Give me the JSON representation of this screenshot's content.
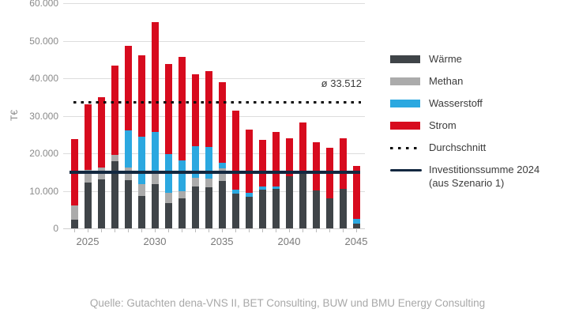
{
  "chart_data": {
    "type": "bar",
    "stacked": true,
    "title": "",
    "ylabel": "T€",
    "ylim": [
      0,
      60000
    ],
    "grid": true,
    "legend_position": "right",
    "ytick_values": [
      0,
      10000,
      20000,
      30000,
      40000,
      50000,
      60000
    ],
    "ytick_labels": [
      "0",
      "10.000",
      "20.000",
      "30.000",
      "40.000",
      "50.000",
      "60.000"
    ],
    "xtick_years": [
      2025,
      2030,
      2035,
      2040,
      2045
    ],
    "xtick_labels": [
      "2025",
      "2030",
      "2035",
      "2040",
      "2045"
    ],
    "years": [
      2024,
      2025,
      2026,
      2027,
      2028,
      2029,
      2030,
      2031,
      2032,
      2033,
      2034,
      2035,
      2036,
      2037,
      2038,
      2039,
      2040,
      2041,
      2042,
      2043,
      2044,
      2045
    ],
    "series": [
      {
        "name": "Wärme",
        "color": "#3f4448",
        "values": [
          2300,
          12200,
          13100,
          18000,
          12800,
          8600,
          11700,
          6800,
          7900,
          11200,
          11000,
          12600,
          9300,
          8500,
          10300,
          10500,
          14000,
          14500,
          10100,
          8000,
          10500,
          1200
        ]
      },
      {
        "name": "Methan",
        "color": "#ababab",
        "values": [
          3800,
          3300,
          3200,
          1500,
          3500,
          3100,
          3200,
          2700,
          2100,
          2300,
          2300,
          3500,
          0,
          0,
          0,
          0,
          0,
          0,
          0,
          0,
          0,
          0
        ]
      },
      {
        "name": "Wasserstoff",
        "color": "#2ba8e0",
        "values": [
          0,
          0,
          0,
          0,
          9900,
          12700,
          10800,
          10300,
          8100,
          8400,
          8400,
          1300,
          1100,
          1000,
          900,
          700,
          0,
          0,
          0,
          0,
          0,
          1400
        ]
      },
      {
        "name": "Strom",
        "color": "#d70b1e",
        "values": [
          17700,
          17600,
          18600,
          23900,
          22400,
          21800,
          29200,
          24000,
          27500,
          19100,
          20200,
          21500,
          20900,
          16800,
          12400,
          14500,
          10100,
          13800,
          12800,
          13500,
          13600,
          14000
        ]
      }
    ],
    "average_line": {
      "label": "Durchschnitt",
      "value": 33512,
      "annotation": "ø 33.512",
      "color": "#0a0a0a"
    },
    "reference_line": {
      "label_line1": "Investitionssumme 2024",
      "label_line2": "(aus Szenario 1)",
      "value": 14900,
      "color": "#132840"
    }
  },
  "source": {
    "text": "Quelle: Gutachten dena-VNS II, BET Consulting, BUW und BMU Energy Consulting"
  }
}
